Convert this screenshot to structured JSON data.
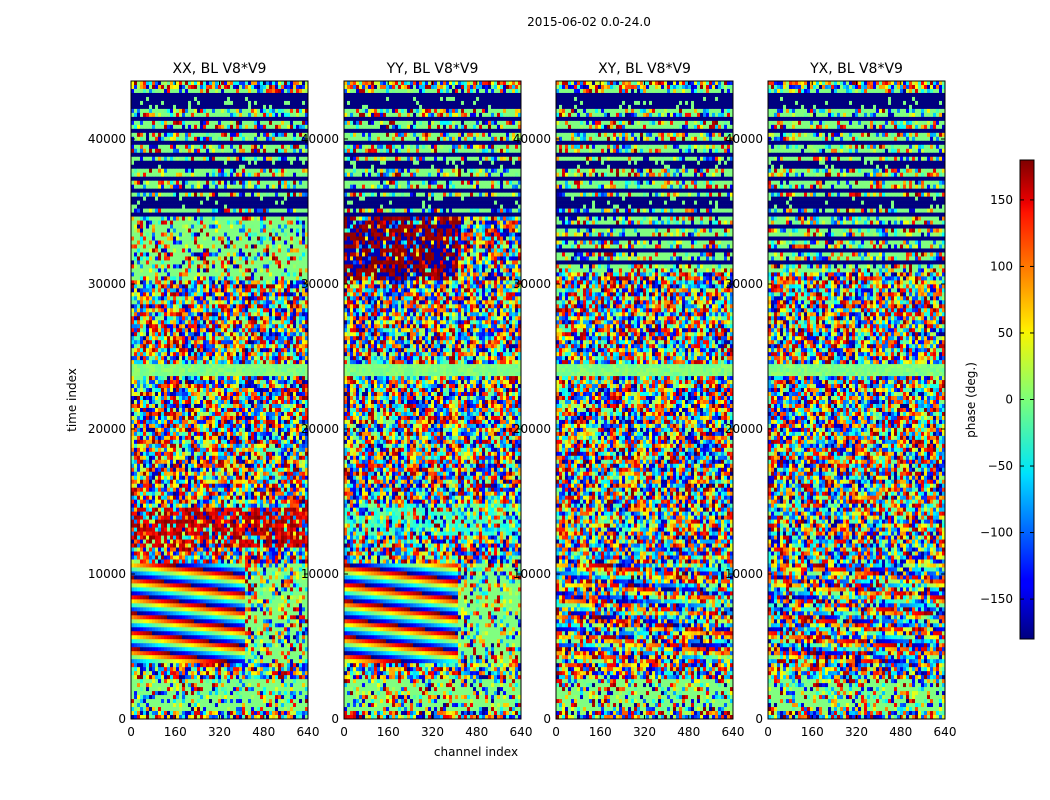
{
  "chart_data": {
    "type": "heatmap",
    "suptitle": "2015-06-02 0.0-24.0",
    "panels": [
      {
        "title": "XX, BL V8*V9"
      },
      {
        "title": "YY, BL V8*V9"
      },
      {
        "title": "XY, BL V8*V9"
      },
      {
        "title": "YX, BL V8*V9"
      }
    ],
    "xlabel": "channel index",
    "ylabel": "time index",
    "xlim": [
      0,
      640
    ],
    "ylim": [
      0,
      44000
    ],
    "xticks": [
      0,
      160,
      320,
      480,
      640
    ],
    "yticks": [
      0,
      10000,
      20000,
      30000,
      40000
    ],
    "colorbar": {
      "label": "phase (deg.)",
      "range": [
        -180,
        180
      ],
      "ticks": [
        150,
        100,
        50,
        0,
        -50,
        -100,
        -150
      ],
      "tick_labels": [
        "150",
        "100",
        "50",
        "0",
        "−50",
        "−100",
        "−150"
      ],
      "colormap": "jet"
    }
  }
}
